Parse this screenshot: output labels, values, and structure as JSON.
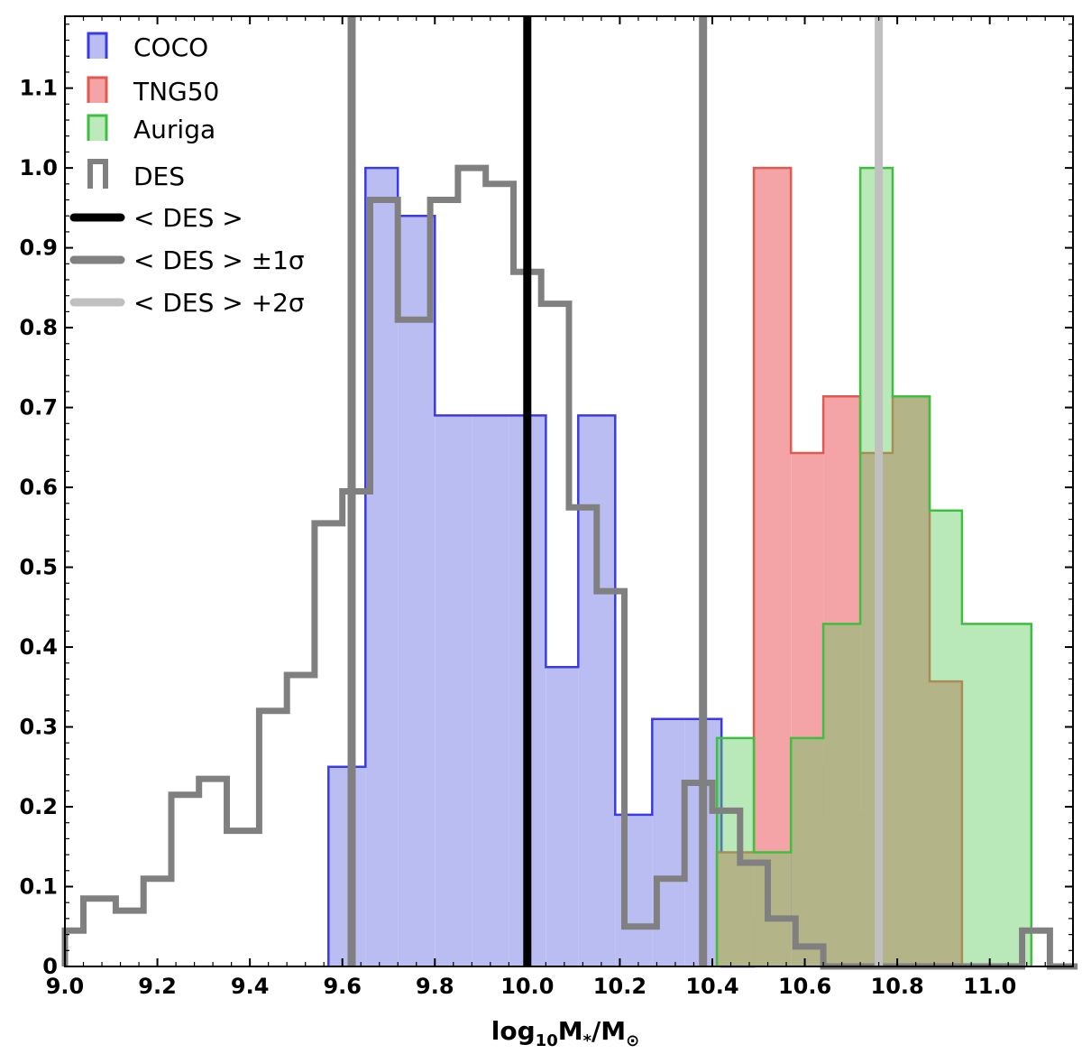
{
  "chart_data": {
    "type": "histogram",
    "xlabel": "log",
    "xlabel_sub": "10",
    "xlabel_rest": "M",
    "xlabel_sub2": "*",
    "xlabel_slash": "/M",
    "xlabel_sun": "⊙",
    "ylabel": "",
    "xlim": [
      9.0,
      11.18
    ],
    "ylim": [
      0,
      1.19
    ],
    "xticks": [
      "9.0",
      "9.2",
      "9.4",
      "9.6",
      "9.8",
      "10.0",
      "10.2",
      "10.4",
      "10.6",
      "10.8",
      "11.0"
    ],
    "xtick_values": [
      9.0,
      9.2,
      9.4,
      9.6,
      9.8,
      10.0,
      10.2,
      10.4,
      10.6,
      10.8,
      11.0
    ],
    "yticks": [
      "0",
      "0.1",
      "0.2",
      "0.3",
      "0.4",
      "0.5",
      "0.6",
      "0.7",
      "0.8",
      "0.9",
      "1.0",
      "1.1"
    ],
    "ytick_values": [
      0,
      0.1,
      0.2,
      0.3,
      0.4,
      0.5,
      0.6,
      0.7,
      0.8,
      0.9,
      1.0,
      1.1
    ],
    "grid": false,
    "legend_position": "top-left",
    "series": [
      {
        "name": "COCO",
        "kind": "filled",
        "color": "#3a3ae6",
        "fill": "#babdf2",
        "edges": [
          9.57,
          9.65,
          9.72,
          9.8,
          9.88,
          9.96,
          10.04,
          10.11,
          10.19,
          10.27,
          10.34,
          10.42,
          10.49,
          10.57,
          10.64,
          10.72,
          10.79
        ],
        "values": [
          0.25,
          1.0,
          0.94,
          0.69,
          0.69,
          0.69,
          0.375,
          0.69,
          0.19,
          0.31,
          0.31,
          0.0,
          0.0625,
          0.25,
          0.19,
          0.19
        ]
      },
      {
        "name": "TNG50",
        "kind": "filled",
        "color": "#e05a50",
        "fill": "#f4a3a6",
        "edges": [
          10.41,
          10.49,
          10.57,
          10.64,
          10.72,
          10.79,
          10.87,
          10.94
        ],
        "values": [
          0.143,
          1.0,
          0.643,
          0.714,
          0.643,
          0.714,
          0.357
        ]
      },
      {
        "name": "Auriga",
        "kind": "filled",
        "color": "#3fbf3f",
        "fill": "rgba(100,205,100,0.45)",
        "edges": [
          10.41,
          10.49,
          10.57,
          10.64,
          10.72,
          10.79,
          10.87,
          10.94,
          11.02,
          11.09
        ],
        "values": [
          0.286,
          0.143,
          0.286,
          0.429,
          1.0,
          0.714,
          0.571,
          0.429,
          0.429
        ]
      },
      {
        "name": "DES",
        "kind": "step",
        "color": "#808080",
        "edges": [
          9.0,
          9.04,
          9.11,
          9.17,
          9.23,
          9.29,
          9.35,
          9.42,
          9.48,
          9.54,
          9.6,
          9.66,
          9.72,
          9.79,
          9.85,
          9.91,
          9.97,
          10.03,
          10.09,
          10.15,
          10.21,
          10.28,
          10.34,
          10.4,
          10.46,
          10.52,
          10.58,
          10.64,
          10.7,
          10.77,
          10.83,
          10.89,
          10.95,
          11.01,
          11.07,
          11.13,
          11.19
        ],
        "values": [
          0.045,
          0.085,
          0.07,
          0.11,
          0.215,
          0.235,
          0.17,
          0.32,
          0.365,
          0.555,
          0.595,
          0.96,
          0.81,
          0.96,
          1.0,
          0.98,
          0.87,
          0.83,
          0.575,
          0.47,
          0.05,
          0.11,
          0.23,
          0.195,
          0.13,
          0.06,
          0.025,
          0.0,
          0.0,
          0.0,
          0.0,
          0.0,
          0.0,
          0.0,
          0.045,
          0.0
        ]
      }
    ],
    "reference_lines": [
      {
        "name": "< DES >",
        "x": 10.0,
        "color": "#000000",
        "width": 9
      },
      {
        "name": "< DES > ±1σ",
        "x": 9.62,
        "color": "#808080",
        "width": 9
      },
      {
        "name": "< DES > ±1σ",
        "x": 10.38,
        "color": "#808080",
        "width": 9
      },
      {
        "name": "< DES > +2σ",
        "x": 10.76,
        "color": "#c0c0c0",
        "width": 9
      }
    ],
    "legend": [
      {
        "label": "COCO",
        "kind": "patch",
        "color": "#3a3ae6",
        "fill": "#babdf2"
      },
      {
        "label": "TNG50",
        "kind": "patch",
        "color": "#e05a50",
        "fill": "#f4a3a6"
      },
      {
        "label": "Auriga",
        "kind": "patch",
        "color": "#3fbf3f",
        "fill": "#bde9bd"
      },
      {
        "label": "DES",
        "kind": "step",
        "color": "#808080"
      },
      {
        "label": "< DES >",
        "kind": "line",
        "color": "#000000"
      },
      {
        "label": "< DES > ±1σ",
        "kind": "line",
        "color": "#808080"
      },
      {
        "label": "< DES > +2σ",
        "kind": "line",
        "color": "#c0c0c0"
      }
    ]
  }
}
